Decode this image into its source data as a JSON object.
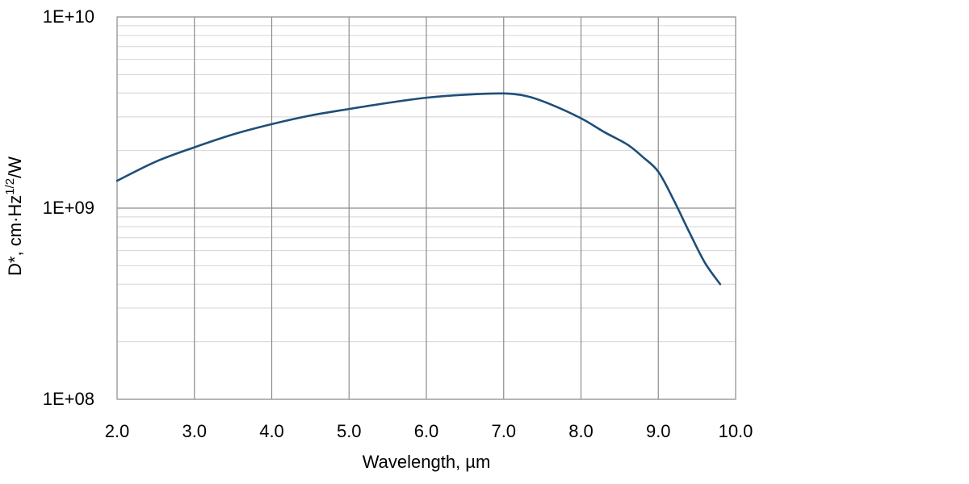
{
  "chart_data": {
    "type": "line",
    "xlabel": "Wavelength, µm",
    "ylabel": {
      "main": "D*, cm·Hz",
      "superscript": "1/2",
      "suffix": "/W"
    },
    "xlim": [
      2.0,
      10.0
    ],
    "ylim": [
      100000000,
      10000000000
    ],
    "yscale": "log",
    "grid": true,
    "x_ticks": [
      "2.0",
      "3.0",
      "4.0",
      "5.0",
      "6.0",
      "7.0",
      "8.0",
      "9.0",
      "10.0"
    ],
    "y_ticks": [
      "1E+08",
      "1E+09",
      "1E+10"
    ],
    "series": [
      {
        "color": "#1f4e79",
        "x": [
          2.0,
          2.5,
          3.0,
          3.5,
          4.0,
          4.5,
          5.0,
          5.5,
          6.0,
          6.5,
          7.0,
          7.3,
          7.6,
          8.0,
          8.3,
          8.6,
          8.8,
          9.0,
          9.2,
          9.4,
          9.6,
          9.8
        ],
        "y": [
          1390000000,
          1750000000,
          2080000000,
          2430000000,
          2750000000,
          3050000000,
          3300000000,
          3550000000,
          3780000000,
          3920000000,
          3980000000,
          3850000000,
          3500000000,
          2950000000,
          2500000000,
          2150000000,
          1850000000,
          1550000000,
          1100000000,
          750000000,
          520000000,
          400000000
        ]
      }
    ]
  }
}
